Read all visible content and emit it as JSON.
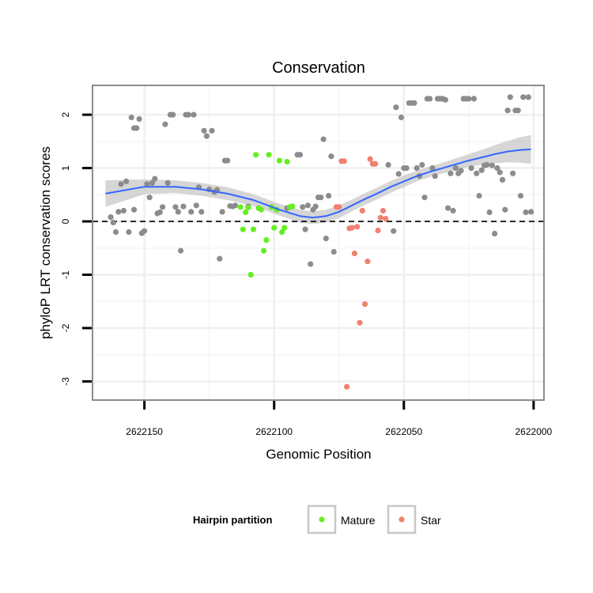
{
  "chart_data": {
    "type": "scatter",
    "title": "Conservation",
    "xlabel": "Genomic Position",
    "ylabel": "phyloP LRT conservation scores",
    "xlim": [
      2622170,
      2621996
    ],
    "ylim": [
      -3.35,
      2.55
    ],
    "x_ticks": [
      2622150,
      2622100,
      2622050,
      2622000
    ],
    "x_tick_labels": [
      "2622150",
      "2622100",
      "2622050",
      "2622000"
    ],
    "y_ticks": [
      2,
      1,
      0,
      -1,
      -2,
      -3
    ],
    "y_tick_labels": [
      "2",
      "1",
      "0",
      "-1",
      "-2",
      "-3"
    ],
    "reference_line_y": 0,
    "legend": {
      "title": "Hairpin partition",
      "position": "bottom",
      "entries": [
        {
          "label": "Mature",
          "color": "#66ee22"
        },
        {
          "label": "Star",
          "color": "#f08070"
        }
      ]
    },
    "colors": {
      "other": "#8c8c8c",
      "mature": "#66ee22",
      "star": "#f08070",
      "smooth": "#3366ff",
      "ribbon": "#c0c0c0"
    },
    "series": [
      {
        "name": "Other",
        "x": [
          2622163,
          2622162,
          2622161,
          2622160,
          2622159,
          2622158,
          2622157,
          2622156,
          2622155,
          2622154,
          2622154,
          2622153,
          2622152,
          2622151,
          2622150,
          2622149,
          2622148,
          2622147,
          2622146,
          2622145,
          2622144,
          2622143,
          2622142,
          2622141,
          2622140,
          2622139,
          2622138,
          2622137,
          2622136,
          2622135,
          2622134,
          2622133,
          2622132,
          2622131,
          2622130,
          2622129,
          2622128,
          2622127,
          2622126,
          2622125,
          2622124,
          2622123,
          2622122,
          2622121,
          2622120,
          2622119,
          2622118,
          2622117,
          2622116,
          2622115,
          2622110,
          2622095,
          2622093,
          2622091,
          2622090,
          2622089,
          2622088,
          2622087,
          2622086,
          2622085,
          2622084,
          2622083,
          2622082,
          2622081,
          2622080,
          2622079,
          2622078,
          2622077,
          2622056,
          2622054,
          2622053,
          2622052,
          2622051,
          2622050,
          2622049,
          2622048,
          2622047,
          2622046,
          2622045,
          2622044,
          2622043,
          2622042,
          2622041,
          2622040,
          2622039,
          2622038,
          2622037,
          2622036,
          2622035,
          2622034,
          2622033,
          2622032,
          2622031,
          2622030,
          2622029,
          2622028,
          2622027,
          2622026,
          2622025,
          2622024,
          2622023,
          2622022,
          2622021,
          2622020,
          2622019,
          2622018,
          2622017,
          2622016,
          2622015,
          2622014,
          2622013,
          2622012,
          2622011,
          2622010,
          2622009,
          2622008,
          2622007,
          2622006,
          2622005,
          2622004,
          2622003,
          2622002,
          2622001
        ],
        "y": [
          0.08,
          -0.02,
          -0.2,
          0.18,
          0.7,
          0.2,
          0.75,
          -0.2,
          1.95,
          0.22,
          1.75,
          1.75,
          1.92,
          -0.22,
          -0.18,
          0.7,
          0.45,
          0.72,
          0.8,
          0.15,
          0.17,
          0.27,
          1.82,
          0.72,
          2.0,
          2.0,
          0.27,
          0.18,
          -0.55,
          0.28,
          2.0,
          2.0,
          0.18,
          2.0,
          0.3,
          0.64,
          0.18,
          1.7,
          1.6,
          0.6,
          1.7,
          0.55,
          0.59,
          -0.7,
          0.18,
          1.14,
          1.14,
          0.29,
          0.28,
          0.3,
          0.28,
          0.25,
          0.28,
          1.25,
          1.25,
          0.27,
          -0.15,
          0.3,
          -0.8,
          0.22,
          0.28,
          0.45,
          0.45,
          1.54,
          -0.32,
          0.48,
          1.22,
          -0.57,
          1.06,
          -0.18,
          2.14,
          0.89,
          1.95,
          1.0,
          1.0,
          2.22,
          2.22,
          2.22,
          1.0,
          0.85,
          1.06,
          0.45,
          2.3,
          2.3,
          1.0,
          0.85,
          2.3,
          2.3,
          2.3,
          2.28,
          0.25,
          0.9,
          0.2,
          1.0,
          0.9,
          0.95,
          2.3,
          2.3,
          2.3,
          1.0,
          2.3,
          0.9,
          0.48,
          0.96,
          1.05,
          1.06,
          0.17,
          1.05,
          -0.23,
          1.0,
          0.92,
          0.78,
          0.22,
          2.08,
          2.33,
          0.9,
          2.08,
          2.08,
          0.48,
          2.33,
          0.17,
          2.33,
          0.18
        ],
        "color_key": "other"
      },
      {
        "name": "Mature",
        "x": [
          2622113,
          2622112,
          2622111,
          2622110,
          2622109,
          2622108,
          2622107,
          2622106,
          2622105,
          2622104,
          2622103,
          2622102,
          2622101,
          2622100,
          2622099,
          2622098,
          2622097,
          2622096,
          2622095,
          2622094,
          2622093
        ],
        "y": [
          0.27,
          -0.15,
          0.17,
          0.26,
          -1.0,
          -0.15,
          1.25,
          0.25,
          0.22,
          -0.55,
          -0.35,
          1.25,
          0.27,
          -0.12,
          0.22,
          1.14,
          -0.2,
          -0.12,
          1.12,
          0.27,
          0.28
        ],
        "color_key": "mature"
      },
      {
        "name": "Star",
        "x": [
          2622076,
          2622075,
          2622074,
          2622073,
          2622072,
          2622071,
          2622070,
          2622069,
          2622068,
          2622067,
          2622066,
          2622065,
          2622064,
          2622063,
          2622062,
          2622061,
          2622060,
          2622059,
          2622058,
          2622057
        ],
        "y": [
          0.27,
          0.27,
          1.13,
          1.13,
          -3.1,
          -0.13,
          -0.12,
          -0.6,
          -0.1,
          -1.9,
          0.2,
          -1.55,
          -0.75,
          1.17,
          1.08,
          1.08,
          -0.17,
          0.07,
          0.2,
          0.05
        ],
        "color_key": "star"
      }
    ],
    "smooth": {
      "x": [
        2622165,
        2622150,
        2622138,
        2622128,
        2622118,
        2622108,
        2622098,
        2622090,
        2622085,
        2622080,
        2622075,
        2622070,
        2622065,
        2622060,
        2622055,
        2622050,
        2622045,
        2622040,
        2622035,
        2622030,
        2622025,
        2622020,
        2622015,
        2622010,
        2622005,
        2622001
      ],
      "y": [
        0.52,
        0.65,
        0.65,
        0.6,
        0.52,
        0.4,
        0.22,
        0.1,
        0.07,
        0.1,
        0.18,
        0.3,
        0.42,
        0.53,
        0.65,
        0.75,
        0.85,
        0.93,
        1.0,
        1.07,
        1.14,
        1.2,
        1.26,
        1.31,
        1.34,
        1.35
      ],
      "ribbon_half_width": [
        0.25,
        0.14,
        0.12,
        0.12,
        0.12,
        0.11,
        0.11,
        0.12,
        0.12,
        0.12,
        0.12,
        0.11,
        0.11,
        0.11,
        0.11,
        0.11,
        0.1,
        0.1,
        0.1,
        0.11,
        0.12,
        0.14,
        0.17,
        0.2,
        0.24,
        0.27
      ]
    }
  }
}
